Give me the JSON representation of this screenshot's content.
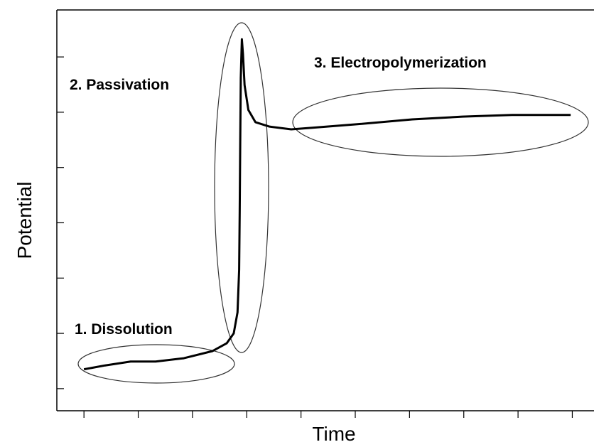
{
  "chart_data": {
    "type": "line",
    "x_label": "Time",
    "y_label": "Potential",
    "annotations": [
      "1. Dissolution",
      "2. Passivation",
      "3. Electropolymerization"
    ],
    "x": [
      0,
      0.39,
      0.86,
      1.32,
      1.84,
      2.37,
      2.63,
      2.76,
      2.83,
      2.86,
      2.87,
      2.88,
      2.89,
      2.91,
      2.93,
      2.96,
      3.03,
      3.16,
      3.42,
      3.82,
      4.21,
      5.0,
      6.05,
      6.97,
      7.89,
      8.97
    ],
    "series": [
      {
        "color": "#000000",
        "values": [
          0.35,
          0.42,
          0.49,
          0.49,
          0.55,
          0.68,
          0.82,
          1.0,
          1.38,
          2.15,
          3.18,
          4.46,
          5.62,
          6.32,
          6.06,
          5.49,
          5.04,
          4.82,
          4.74,
          4.69,
          4.72,
          4.78,
          4.87,
          4.92,
          4.95,
          4.95
        ]
      }
    ],
    "xlim": [
      -0.5,
      9.4
    ],
    "ylim": [
      -0.4,
      6.85
    ],
    "xticks": [
      0,
      1,
      2,
      3,
      4,
      5,
      6,
      7,
      8,
      9
    ],
    "yticks": [
      0,
      1,
      2,
      3,
      4,
      5,
      6
    ]
  }
}
